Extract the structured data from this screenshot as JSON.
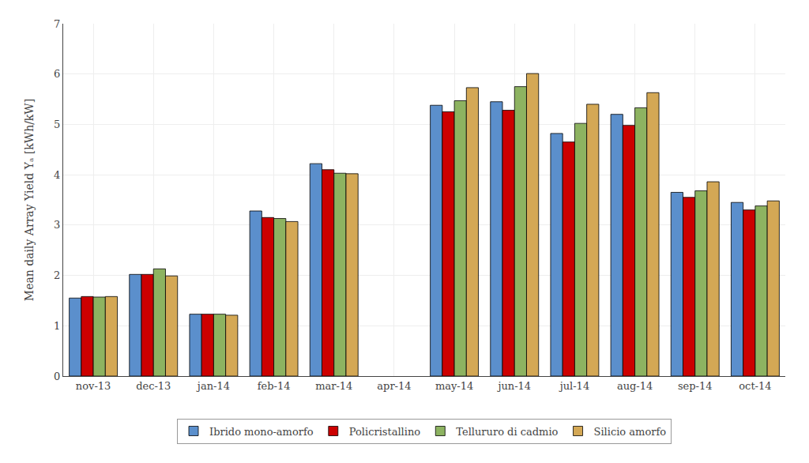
{
  "chart_data": {
    "type": "bar",
    "categories": [
      "nov-13",
      "dec-13",
      "jan-14",
      "feb-14",
      "mar-14",
      "apr-14",
      "may-14",
      "jun-14",
      "jul-14",
      "aug-14",
      "sep-14",
      "oct-14"
    ],
    "series": [
      {
        "name": "Ibrido mono-amorfo",
        "color": "#5B8FCC",
        "values": [
          1.55,
          2.02,
          1.23,
          3.28,
          4.22,
          null,
          5.38,
          5.45,
          4.82,
          5.2,
          3.65,
          3.45
        ]
      },
      {
        "name": "Policristallino",
        "color": "#CC0000",
        "values": [
          1.58,
          2.02,
          1.23,
          3.15,
          4.1,
          null,
          5.25,
          5.28,
          4.65,
          4.98,
          3.55,
          3.3
        ]
      },
      {
        "name": "Tellururo di cadmio",
        "color": "#8DB361",
        "values": [
          1.57,
          2.13,
          1.23,
          3.13,
          4.03,
          null,
          5.47,
          5.75,
          5.02,
          5.33,
          3.68,
          3.38
        ]
      },
      {
        "name": "Silicio amorfo",
        "color": "#D4A855",
        "values": [
          1.58,
          1.99,
          1.21,
          3.07,
          4.02,
          null,
          5.73,
          6.01,
          5.4,
          5.63,
          3.86,
          3.48
        ]
      }
    ],
    "ylabel": "Mean daily Array Yield Yₐ [kWh/kW]",
    "ylim": [
      0,
      7
    ],
    "yticks": [
      0,
      1,
      2,
      3,
      4,
      5,
      6,
      7
    ],
    "grid": true,
    "legend": "bottom"
  }
}
